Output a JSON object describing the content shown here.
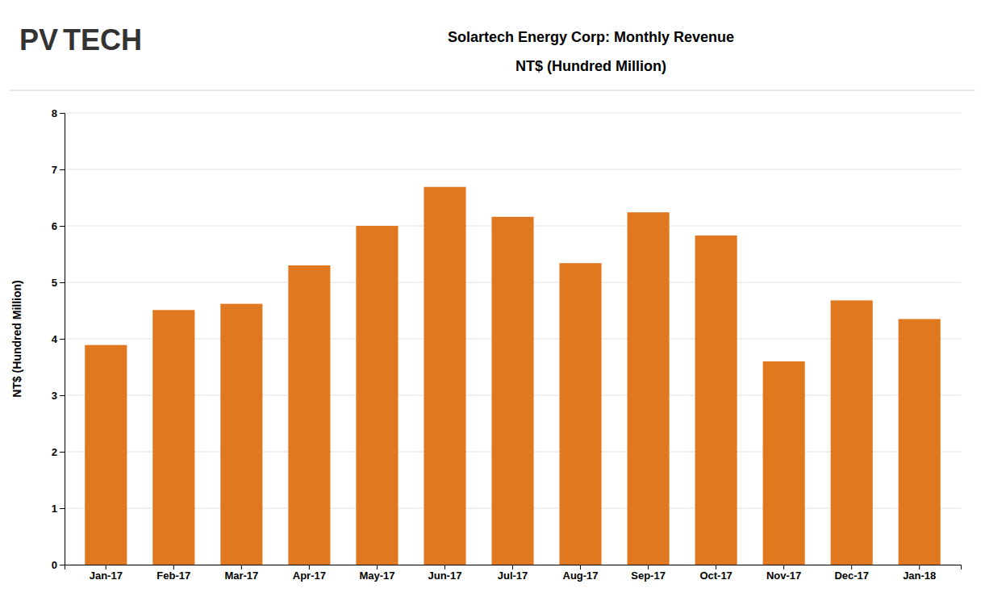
{
  "chart_data": {
    "type": "bar",
    "title": "Solartech Energy Corp: Monthly Revenue",
    "subtitle": "NT$ (Hundred Million)",
    "ylabel": "NT$ (Hundred Million)",
    "annotations": [
      "PV",
      "TECH"
    ],
    "categories": [
      "Jan-17",
      "Feb-17",
      "Mar-17",
      "Apr-17",
      "May-17",
      "Jun-17",
      "Jul-17",
      "Aug-17",
      "Sep-17",
      "Oct-17",
      "Nov-17",
      "Dec-17",
      "Jan-18"
    ],
    "values": [
      3.89,
      4.51,
      4.62,
      5.3,
      6.0,
      6.69,
      6.16,
      5.34,
      6.24,
      5.83,
      3.6,
      4.68,
      4.35
    ],
    "color": "#E07820",
    "ylim": [
      0,
      8
    ],
    "yticks": [
      0,
      1,
      2,
      3,
      4,
      5,
      6,
      7,
      8
    ],
    "grid": true
  }
}
